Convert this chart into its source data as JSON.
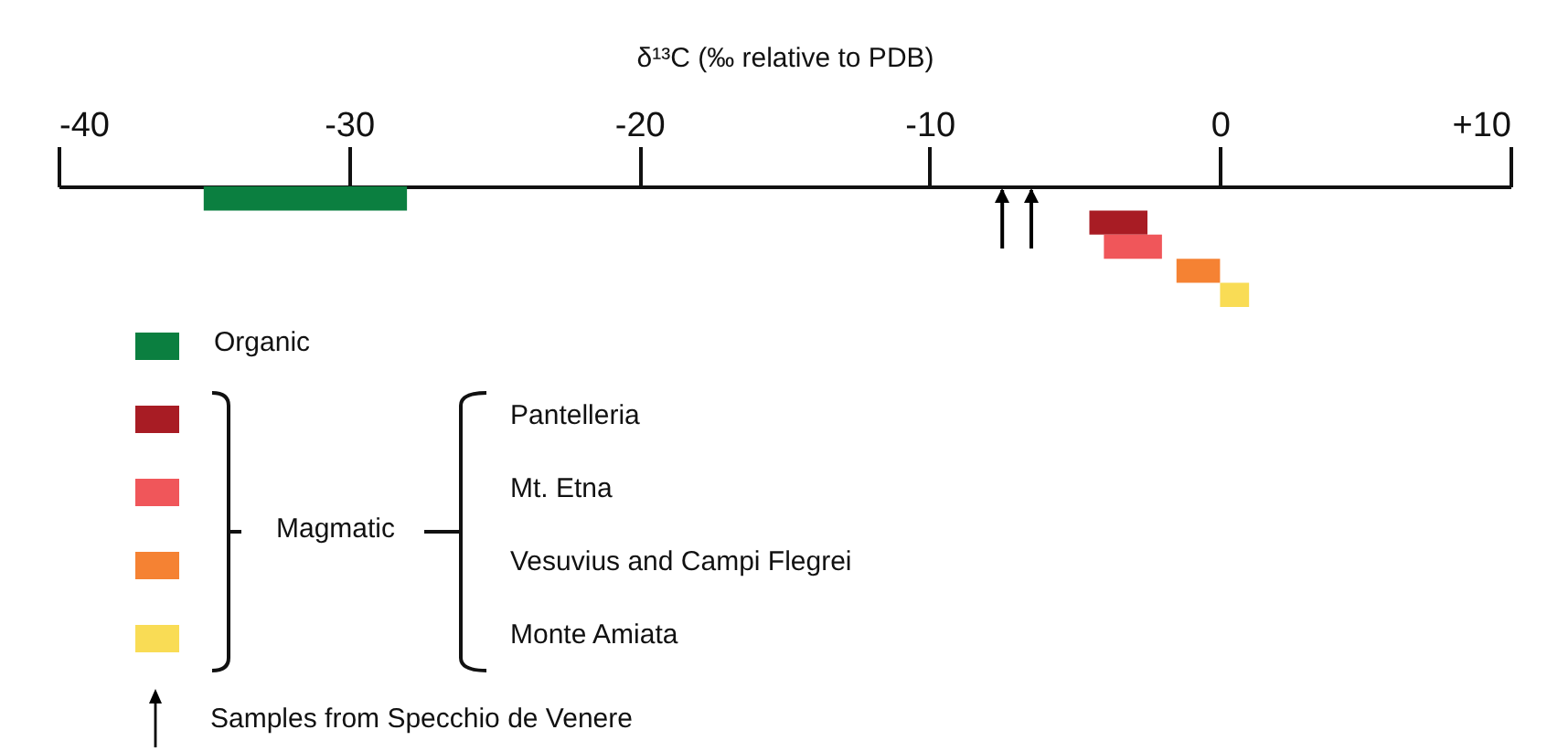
{
  "chart_data": {
    "type": "bar",
    "orientation": "horizontal",
    "xlabel": "δ¹³C (‰ relative to PDB)",
    "categories": [
      null,
      null,
      null,
      null,
      null
    ],
    "xlim": [
      -40,
      10
    ],
    "xticks": [
      -40,
      -30,
      -20,
      -10,
      0,
      {
        "value": 10,
        "label": "+10"
      }
    ],
    "grid": false,
    "values": [
      7,
      2,
      2,
      1.5,
      1
    ],
    "base": [
      -35,
      -4.5,
      -4,
      -1.5,
      0
    ],
    "colors": [
      "#0b7f40",
      "#a81c24",
      "#f0565a",
      "#f58233",
      "#f9dc55"
    ],
    "ref_lines": [
      {
        "axis": "x",
        "value": -7.5,
        "label": "Samples from Specchio de Venere",
        "color": "#000000"
      },
      {
        "axis": "x",
        "value": -6.5,
        "label": null,
        "color": "#000000"
      }
    ],
    "annotations": [
      "Magmatic",
      "Organic",
      "Pantelleria",
      "Mt. Etna",
      "Vesuvius and Campi Flegrei",
      "Monte Amiata"
    ]
  }
}
